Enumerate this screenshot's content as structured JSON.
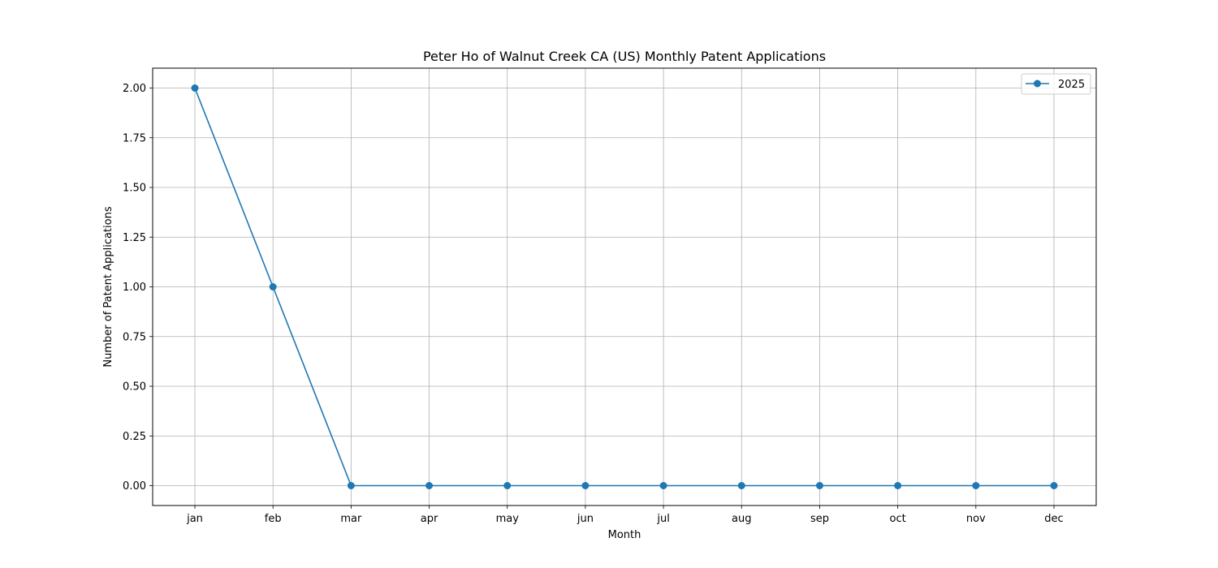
{
  "chart_data": {
    "type": "line",
    "title": "Peter Ho of Walnut Creek CA (US) Monthly Patent Applications",
    "xlabel": "Month",
    "ylabel": "Number of Patent Applications",
    "categories": [
      "jan",
      "feb",
      "mar",
      "apr",
      "may",
      "jun",
      "jul",
      "aug",
      "sep",
      "oct",
      "nov",
      "dec"
    ],
    "series": [
      {
        "name": "2025",
        "values": [
          2,
          1,
          0,
          0,
          0,
          0,
          0,
          0,
          0,
          0,
          0,
          0
        ],
        "color": "#1f77b4",
        "marker": "circle"
      }
    ],
    "yticks": [
      "0.00",
      "0.25",
      "0.50",
      "0.75",
      "1.00",
      "1.25",
      "1.50",
      "1.75",
      "2.00"
    ],
    "ylim": [
      -0.1,
      2.1
    ],
    "grid": true,
    "legend": "top-right"
  }
}
